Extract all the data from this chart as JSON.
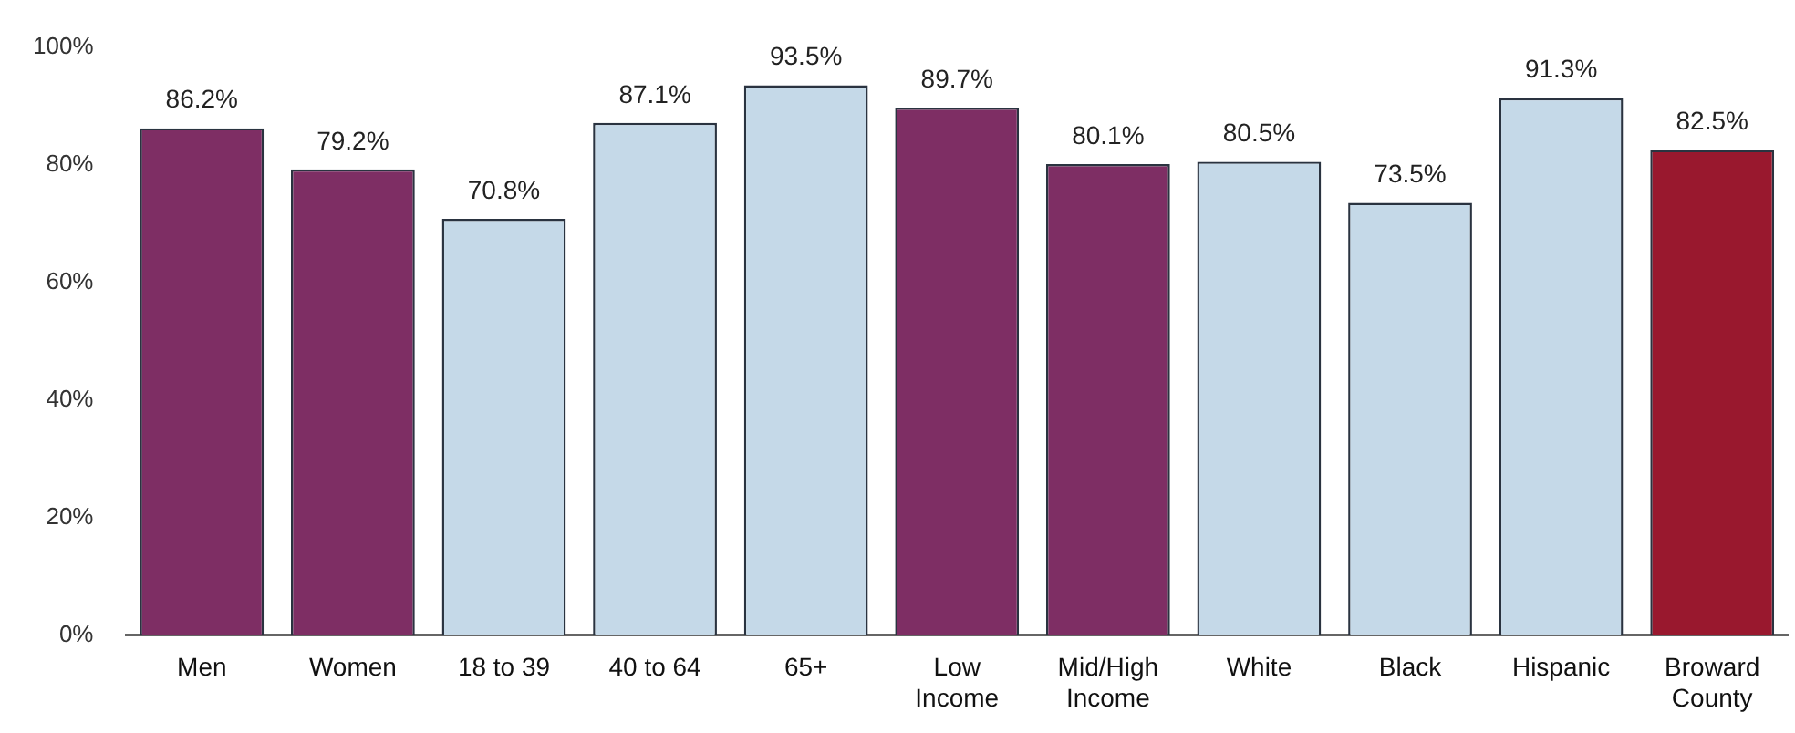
{
  "chart_data": {
    "type": "bar",
    "categories": [
      "Men",
      "Women",
      "18 to 39",
      "40 to 64",
      "65+",
      "Low Income",
      "Mid/High Income",
      "White",
      "Black",
      "Hispanic",
      "Broward County"
    ],
    "values": [
      86.2,
      79.2,
      70.8,
      87.1,
      93.5,
      89.7,
      80.1,
      80.5,
      73.5,
      91.3,
      82.5
    ],
    "colors": [
      "#7e2e64",
      "#7e2e64",
      "#c5d9e8",
      "#c5d9e8",
      "#c5d9e8",
      "#7e2e64",
      "#7e2e64",
      "#c5d9e8",
      "#c5d9e8",
      "#c5d9e8",
      "#99182e"
    ],
    "value_labels": [
      "86.2%",
      "79.2%",
      "70.8%",
      "87.1%",
      "93.5%",
      "89.7%",
      "80.1%",
      "80.5%",
      "73.5%",
      "91.3%",
      "82.5%"
    ],
    "ylim": [
      0,
      100
    ],
    "yticks": [
      {
        "value": 0,
        "label": "0%"
      },
      {
        "value": 20,
        "label": "20%"
      },
      {
        "value": 40,
        "label": "40%"
      },
      {
        "value": 60,
        "label": "60%"
      },
      {
        "value": 80,
        "label": "80%"
      },
      {
        "value": 100,
        "label": "100%"
      }
    ],
    "grid": false,
    "legend": false
  }
}
